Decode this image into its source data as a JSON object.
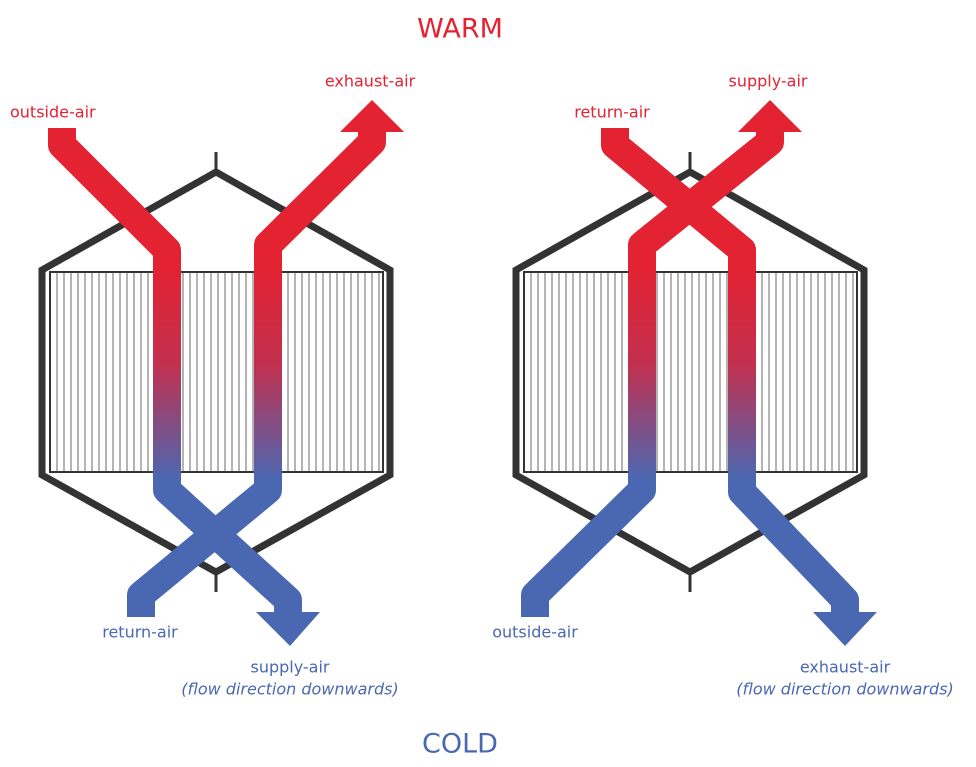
{
  "top_label": "WARM",
  "bottom_label": "COLD",
  "diagrams": [
    {
      "outside_air": "outside-air",
      "exhaust_air": "exhaust-air",
      "return_air": "return-air",
      "supply_air": "supply-air",
      "note": "(flow direction downwards)"
    },
    {
      "return_air": "return-air",
      "supply_air": "supply-air",
      "outside_air": "outside-air",
      "exhaust_air": "exhaust-air",
      "note": "(flow direction downwards)"
    }
  ]
}
